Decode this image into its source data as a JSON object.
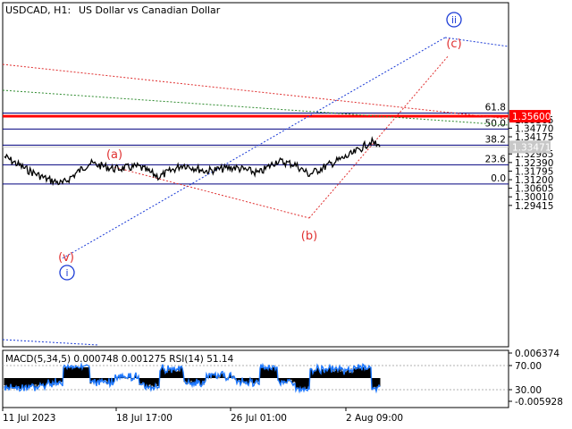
{
  "header": {
    "symbol": "USDCAD, H1:",
    "description": "US Dollar vs Canadian Dollar"
  },
  "price_axis": {
    "ticks": [
      "1.35365",
      "1.34770",
      "1.34175",
      "1.32985",
      "1.32390",
      "1.31795",
      "1.31200",
      "1.30605",
      "1.30010",
      "1.29415"
    ],
    "price_label_red": "1.35600",
    "price_label_gray": "1.33471"
  },
  "time_axis": {
    "ticks": [
      "11 Jul 2023",
      "18 Jul 17:00",
      "26 Jul 01:00",
      "2 Aug 09:00"
    ]
  },
  "fibonacci": {
    "levels": [
      {
        "label": "61.8",
        "price": 1.3582
      },
      {
        "label": "50.0",
        "price": 1.3471
      },
      {
        "label": "38.2",
        "price": 1.336
      },
      {
        "label": "23.6",
        "price": 1.3223
      },
      {
        "label": "0.0",
        "price": 1.309
      }
    ]
  },
  "wave_labels": {
    "a": "(a)",
    "b": "(b)",
    "c": "(c)",
    "v": "(v)",
    "i": "i",
    "ii": "ii"
  },
  "indicator": {
    "label": "MACD(5,34,5) 0.000748 0.001275 RSI(14) 51.14",
    "ticks": [
      "0.006374",
      "70.00",
      "30.00",
      "-0.005928"
    ]
  },
  "colors": {
    "price_line": "#000000",
    "fib_line": "#00007f",
    "resistance_line": "#ff0000",
    "blue_dotted": "#1c3cd6",
    "red_dotted": "#e03030",
    "green_dotted": "#2e8b2e",
    "rsi_line": "#1e78ff",
    "wave_red": "#e03030",
    "wave_blue": "#1c3cd6"
  },
  "chart_data": {
    "type": "line",
    "title": "USDCAD, H1:  US Dollar vs Canadian Dollar",
    "x": [
      "11 Jul 2023",
      "18 Jul 17:00",
      "26 Jul 01:00",
      "2 Aug 09:00"
    ],
    "price_anchors": [
      {
        "t": "11 Jul 2023",
        "price": 1.328
      },
      {
        "t": "12 Jul",
        "price": 1.319
      },
      {
        "t": "13 Jul",
        "price": 1.3125
      },
      {
        "t": "14 Jul",
        "price": 1.3092
      },
      {
        "t": "17 Jul",
        "price": 1.3235
      },
      {
        "t": "18 Jul",
        "price": 1.3195
      },
      {
        "t": "18 Jul 17:00",
        "price": 1.321
      },
      {
        "t": "19 Jul",
        "price": 1.317
      },
      {
        "t": "20 Jul",
        "price": 1.314
      },
      {
        "t": "21 Jul",
        "price": 1.3225
      },
      {
        "t": "24 Jul",
        "price": 1.318
      },
      {
        "t": "25 Jul",
        "price": 1.3205
      },
      {
        "t": "26 Jul 01:00",
        "price": 1.3165
      },
      {
        "t": "27 Jul",
        "price": 1.325
      },
      {
        "t": "28 Jul",
        "price": 1.3225
      },
      {
        "t": "31 Jul",
        "price": 1.3157
      },
      {
        "t": "1 Aug",
        "price": 1.3235
      },
      {
        "t": "2 Aug 09:00",
        "price": 1.33
      },
      {
        "t": "3 Aug",
        "price": 1.3385
      },
      {
        "t": "4 Aug",
        "price": 1.3347
      }
    ],
    "current_price": 1.33471,
    "horizontal_levels": [
      1.356
    ],
    "ylim": [
      1.288,
      1.365
    ]
  }
}
